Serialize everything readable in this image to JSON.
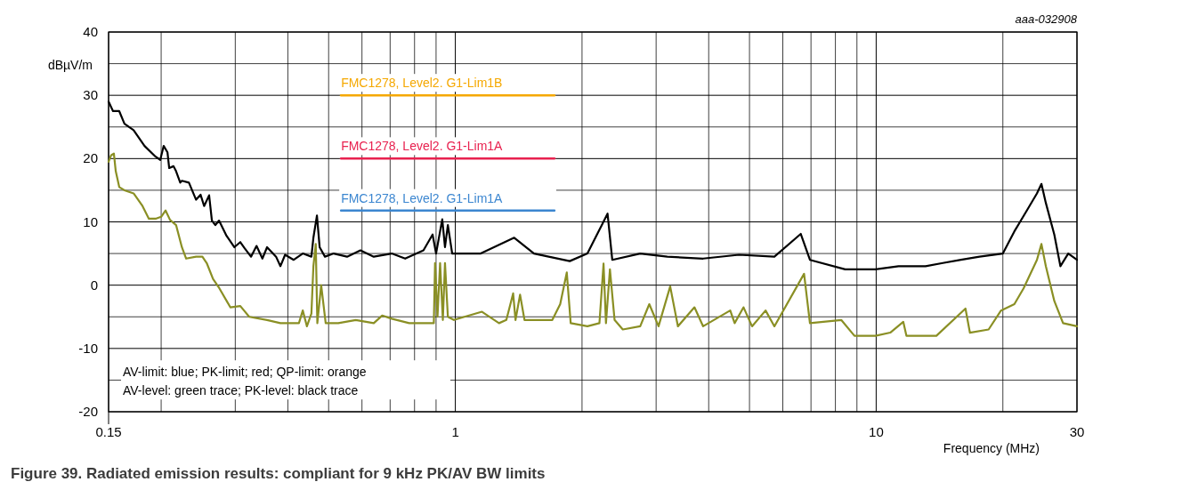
{
  "chart_data": {
    "type": "line",
    "title": "Figure 39.  Radiated emission results: compliant for 9 kHz PK/AV BW limits",
    "xlabel": "Frequency (MHz)",
    "ylabel": "dBµV/m",
    "log": "x",
    "grid": true,
    "annotations": [
      "aaa-032908",
      "AV-limit: blue; PK-limit; red; QP-limit: orange",
      "AV-level: green trace; PK-level: black trace"
    ],
    "xlim": [
      0.15,
      30
    ],
    "ylim": [
      -20,
      40
    ],
    "xticks": [
      0.15,
      {
        "value": 0.2,
        "label": null
      },
      {
        "value": 0.3,
        "label": null
      },
      {
        "value": 0.4,
        "label": null
      },
      {
        "value": 0.5,
        "label": null
      },
      {
        "value": 0.6,
        "label": null
      },
      {
        "value": 0.7,
        "label": null
      },
      {
        "value": 0.8,
        "label": null
      },
      {
        "value": 0.9,
        "label": null
      },
      1,
      {
        "value": 2,
        "label": null
      },
      {
        "value": 3,
        "label": null
      },
      {
        "value": 4,
        "label": null
      },
      {
        "value": 5,
        "label": null
      },
      {
        "value": 6,
        "label": null
      },
      {
        "value": 7,
        "label": null
      },
      {
        "value": 8,
        "label": null
      },
      {
        "value": 9,
        "label": null
      },
      10,
      {
        "value": 20,
        "label": null
      },
      30
    ],
    "yticks": [
      -20,
      {
        "value": -15,
        "label": null
      },
      -10,
      {
        "value": -5,
        "label": null
      },
      0,
      {
        "value": 5,
        "label": null
      },
      10,
      {
        "value": 15,
        "label": null
      },
      20,
      {
        "value": 25,
        "label": null
      },
      30,
      {
        "value": 35,
        "label": null
      },
      40
    ],
    "series": [
      {
        "name": "FMC1278, Level2. G1-Lim1B",
        "color": "#f5a800",
        "x": [
          0.535,
          1.72
        ],
        "values": [
          30,
          30
        ]
      },
      {
        "name": "FMC1278, Level2. G1-Lim1A",
        "color": "#e8214f",
        "x": [
          0.535,
          1.72
        ],
        "values": [
          20,
          20
        ]
      },
      {
        "name": "FMC1278, Level2. G1-Lim1A",
        "color": "#3b86d0",
        "x": [
          0.535,
          1.72
        ],
        "values": [
          11.8,
          11.8
        ]
      },
      {
        "color": "#8a8f24",
        "x": [
          0.15,
          0.152,
          0.1544,
          0.156,
          0.159,
          0.1636,
          0.172,
          0.1806,
          0.187,
          0.194,
          0.2,
          0.2049,
          0.21,
          0.217,
          0.224,
          0.2293,
          0.2421,
          0.2506,
          0.2566,
          0.2656,
          0.275,
          0.292,
          0.3084,
          0.3238,
          0.357,
          0.384,
          0.425,
          0.434,
          0.444,
          0.455,
          0.46,
          0.466,
          0.47,
          0.48,
          0.492,
          0.527,
          0.58,
          0.64,
          0.67,
          0.706,
          0.777,
          0.889,
          0.895,
          0.907,
          0.92,
          0.934,
          0.945,
          0.96,
          0.992,
          1.157,
          1.27,
          1.322,
          1.372,
          1.39,
          1.425,
          1.46,
          1.7,
          1.775,
          1.84,
          1.88,
          2.06,
          2.2,
          2.25,
          2.28,
          2.33,
          2.39,
          2.5,
          2.75,
          2.89,
          3.04,
          3.24,
          3.38,
          3.7,
          3.88,
          4.5,
          4.61,
          4.84,
          5.07,
          5.46,
          5.73,
          6.74,
          6.96,
          8.26,
          8.88,
          9.96,
          10.8,
          11.6,
          11.8,
          13.9,
          16.3,
          16.7,
          18.5,
          19.8,
          21.3,
          22.4,
          24.1,
          24.7,
          25.3,
          26.5,
          27.8,
          30
        ],
        "values": [
          19.5,
          20.5,
          20.8,
          18,
          15.5,
          15,
          14.5,
          12.5,
          10.5,
          10.5,
          10.8,
          11.8,
          10.3,
          9.5,
          6,
          4.2,
          4.5,
          4.5,
          3.5,
          1,
          -0.5,
          -3.5,
          -3.3,
          -5,
          -5.5,
          -6,
          -6,
          -4,
          -6.5,
          -4.5,
          3,
          6.5,
          -6,
          0,
          -6,
          -6,
          -5.5,
          -6,
          -4.8,
          -5.3,
          -6,
          -6,
          3.5,
          -5,
          3.5,
          -5.5,
          3.5,
          -5,
          -5.5,
          -4.2,
          -6,
          -5.5,
          -1.3,
          -5.5,
          -1.5,
          -5.5,
          -5.5,
          -3,
          2,
          -6,
          -6.5,
          -6,
          3.4,
          -6,
          2.5,
          -5.5,
          -7,
          -6.5,
          -3,
          -6.5,
          -0.2,
          -6.5,
          -3.5,
          -6.5,
          -4,
          -6,
          -3.5,
          -6.5,
          -4,
          -6.5,
          1.8,
          -6,
          -5.5,
          -8,
          -8,
          -7.5,
          -5.8,
          -8,
          -8,
          -3.7,
          -7.5,
          -7,
          -4,
          -3,
          -0.5,
          4,
          6.5,
          3,
          -2.5,
          -6,
          -6.5
        ]
      },
      {
        "color": "#000000",
        "x": [
          0.15,
          0.1537,
          0.159,
          0.1636,
          0.172,
          0.1826,
          0.194,
          0.199,
          0.2028,
          0.207,
          0.209,
          0.214,
          0.217,
          0.222,
          0.224,
          0.2328,
          0.2421,
          0.2481,
          0.253,
          0.26,
          0.264,
          0.269,
          0.2745,
          0.286,
          0.2984,
          0.3084,
          0.316,
          0.327,
          0.337,
          0.348,
          0.357,
          0.375,
          0.384,
          0.394,
          0.413,
          0.434,
          0.455,
          0.46,
          0.469,
          0.476,
          0.49,
          0.514,
          0.553,
          0.595,
          0.64,
          0.706,
          0.76,
          0.84,
          0.883,
          0.9,
          0.931,
          0.945,
          0.96,
          0.983,
          1.149,
          1.38,
          1.538,
          1.87,
          2.06,
          2.21,
          2.3,
          2.36,
          2.75,
          3.19,
          3.88,
          4.72,
          5.73,
          6.62,
          6.96,
          8.44,
          9.96,
          11.3,
          13.1,
          14.4,
          15.9,
          17.6,
          20,
          21.3,
          22.9,
          24.1,
          24.7,
          25.3,
          26.5,
          27.4,
          28.6,
          30
        ],
        "values": [
          29,
          27.5,
          27.5,
          25.5,
          24.5,
          22,
          20.3,
          19.8,
          22,
          21,
          18.5,
          18.8,
          18,
          16.2,
          16.5,
          16.2,
          13.5,
          14.3,
          12.5,
          14.2,
          10.2,
          9.5,
          10.2,
          7.8,
          6,
          6.8,
          5.8,
          4.5,
          6.2,
          4.2,
          6,
          4.5,
          3,
          4.8,
          4,
          5,
          4.5,
          7.5,
          11,
          6,
          4.5,
          5,
          4.5,
          5.5,
          4.5,
          5,
          4.2,
          5.5,
          8,
          5,
          10.4,
          6,
          9.5,
          5,
          5,
          7.5,
          5,
          3.8,
          5,
          9,
          11.3,
          4,
          5,
          4.5,
          4.2,
          4.8,
          4.5,
          8.1,
          4,
          2.5,
          2.5,
          3,
          3,
          3.5,
          4,
          4.5,
          5,
          8.5,
          12,
          14.5,
          16,
          13,
          8,
          3,
          5,
          4
        ]
      }
    ]
  }
}
